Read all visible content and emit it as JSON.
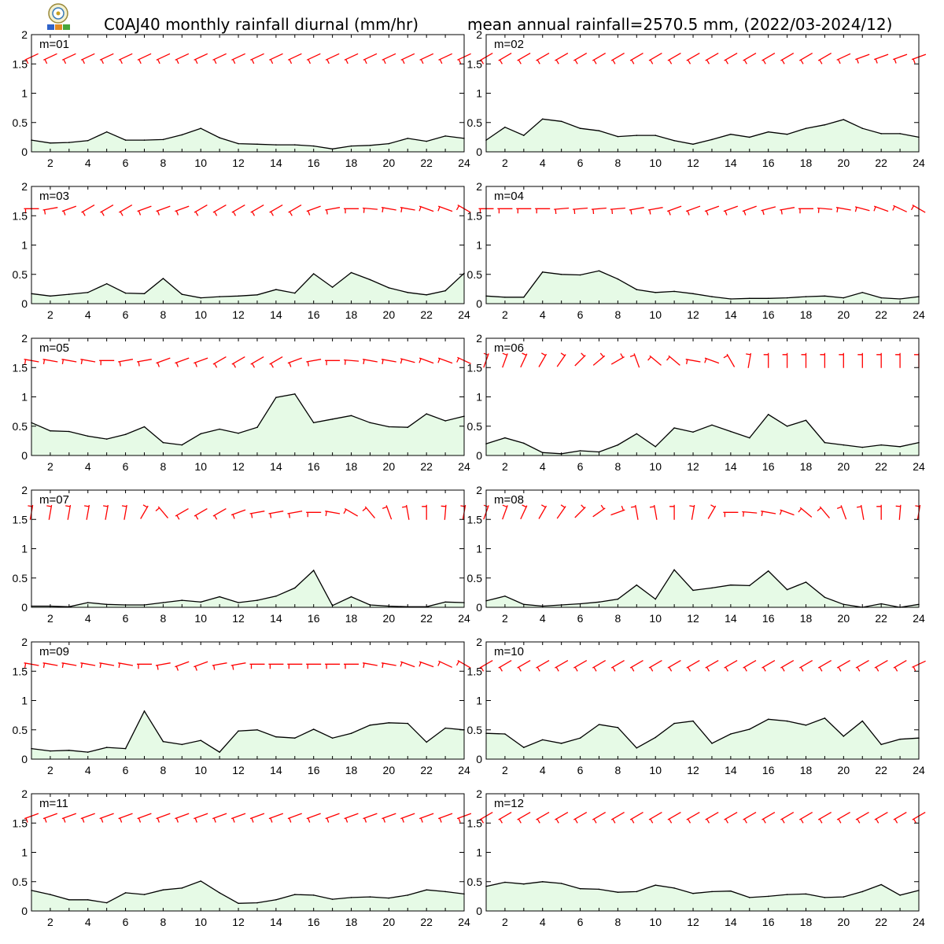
{
  "title_left": "C0AJ40 monthly rainfall diurnal (mm/hr)",
  "title_right": "mean annual rainfall=2570.5 mm, (2022/03-2024/12)",
  "colors": {
    "fill": "#e6fae6",
    "line": "#000000",
    "wind": "#ff0000"
  },
  "chart_data": {
    "type": "area",
    "x": [
      1,
      2,
      3,
      4,
      5,
      6,
      7,
      8,
      9,
      10,
      11,
      12,
      13,
      14,
      15,
      16,
      17,
      18,
      19,
      20,
      21,
      22,
      23,
      24
    ],
    "xticks": [
      2,
      4,
      6,
      8,
      10,
      12,
      14,
      16,
      18,
      20,
      22,
      24
    ],
    "ylim": [
      0,
      2
    ],
    "yticks": [
      "0",
      "0.5",
      "1",
      "1.5",
      "2"
    ],
    "panels": [
      {
        "label": "m=01",
        "values": [
          0.2,
          0.15,
          0.16,
          0.19,
          0.34,
          0.2,
          0.2,
          0.21,
          0.29,
          0.4,
          0.24,
          0.14,
          0.13,
          0.12,
          0.12,
          0.1,
          0.05,
          0.1,
          0.11,
          0.14,
          0.23,
          0.18,
          0.27,
          0.23
        ]
      },
      {
        "label": "m=02",
        "values": [
          0.2,
          0.42,
          0.28,
          0.56,
          0.52,
          0.4,
          0.36,
          0.26,
          0.28,
          0.28,
          0.19,
          0.13,
          0.21,
          0.3,
          0.25,
          0.34,
          0.3,
          0.4,
          0.46,
          0.55,
          0.4,
          0.31,
          0.31,
          0.25
        ]
      },
      {
        "label": "m=03",
        "values": [
          0.17,
          0.13,
          0.16,
          0.19,
          0.34,
          0.18,
          0.17,
          0.43,
          0.16,
          0.1,
          0.12,
          0.13,
          0.15,
          0.24,
          0.18,
          0.51,
          0.28,
          0.53,
          0.41,
          0.27,
          0.19,
          0.15,
          0.22,
          0.52
        ]
      },
      {
        "label": "m=04",
        "values": [
          0.13,
          0.11,
          0.11,
          0.54,
          0.5,
          0.49,
          0.56,
          0.42,
          0.24,
          0.19,
          0.21,
          0.17,
          0.12,
          0.08,
          0.09,
          0.09,
          0.1,
          0.12,
          0.13,
          0.1,
          0.19,
          0.1,
          0.08,
          0.12
        ]
      },
      {
        "label": "m=05",
        "values": [
          0.56,
          0.42,
          0.41,
          0.33,
          0.28,
          0.36,
          0.49,
          0.22,
          0.18,
          0.37,
          0.45,
          0.38,
          0.48,
          0.99,
          1.05,
          0.56,
          0.62,
          0.68,
          0.56,
          0.49,
          0.48,
          0.71,
          0.59,
          0.67
        ]
      },
      {
        "label": "m=06",
        "values": [
          0.2,
          0.3,
          0.21,
          0.05,
          0.03,
          0.08,
          0.06,
          0.18,
          0.37,
          0.15,
          0.47,
          0.4,
          0.52,
          0.41,
          0.3,
          0.7,
          0.5,
          0.6,
          0.22,
          0.18,
          0.14,
          0.18,
          0.15,
          0.22
        ]
      },
      {
        "label": "m=07",
        "values": [
          0.02,
          0.02,
          0.01,
          0.08,
          0.05,
          0.04,
          0.04,
          0.08,
          0.12,
          0.09,
          0.18,
          0.08,
          0.12,
          0.19,
          0.33,
          0.63,
          0.03,
          0.18,
          0.04,
          0.02,
          0.01,
          0.01,
          0.09,
          0.08
        ]
      },
      {
        "label": "m=08",
        "values": [
          0.11,
          0.19,
          0.05,
          0.02,
          0.04,
          0.06,
          0.09,
          0.14,
          0.38,
          0.14,
          0.64,
          0.29,
          0.33,
          0.38,
          0.37,
          0.62,
          0.3,
          0.43,
          0.17,
          0.05,
          0.0,
          0.06,
          0.0,
          0.05
        ]
      },
      {
        "label": "m=09",
        "values": [
          0.18,
          0.14,
          0.15,
          0.12,
          0.2,
          0.18,
          0.82,
          0.3,
          0.25,
          0.32,
          0.12,
          0.48,
          0.5,
          0.38,
          0.36,
          0.51,
          0.36,
          0.44,
          0.58,
          0.62,
          0.61,
          0.29,
          0.53,
          0.5
        ]
      },
      {
        "label": "m=10",
        "values": [
          0.44,
          0.43,
          0.2,
          0.33,
          0.27,
          0.36,
          0.59,
          0.54,
          0.19,
          0.37,
          0.61,
          0.65,
          0.27,
          0.43,
          0.51,
          0.68,
          0.65,
          0.58,
          0.7,
          0.39,
          0.65,
          0.25,
          0.34,
          0.36
        ]
      },
      {
        "label": "m=11",
        "values": [
          0.35,
          0.28,
          0.19,
          0.19,
          0.14,
          0.31,
          0.28,
          0.36,
          0.39,
          0.51,
          0.31,
          0.13,
          0.14,
          0.19,
          0.28,
          0.27,
          0.2,
          0.23,
          0.24,
          0.22,
          0.27,
          0.36,
          0.33,
          0.29
        ]
      },
      {
        "label": "m=12",
        "values": [
          0.42,
          0.49,
          0.46,
          0.5,
          0.47,
          0.38,
          0.37,
          0.32,
          0.33,
          0.44,
          0.39,
          0.3,
          0.33,
          0.34,
          0.23,
          0.25,
          0.28,
          0.29,
          0.23,
          0.24,
          0.33,
          0.45,
          0.27,
          0.35
        ]
      }
    ],
    "wind_dir_deg": [
      [
        65,
        65,
        65,
        65,
        65,
        65,
        65,
        65,
        65,
        65,
        65,
        65,
        65,
        65,
        65,
        65,
        65,
        65,
        65,
        65,
        65,
        65,
        65,
        65
      ],
      [
        60,
        60,
        60,
        60,
        60,
        60,
        60,
        60,
        60,
        60,
        60,
        60,
        60,
        60,
        60,
        60,
        60,
        60,
        60,
        65,
        70,
        70,
        70,
        70
      ],
      [
        90,
        80,
        70,
        60,
        60,
        60,
        70,
        70,
        70,
        60,
        60,
        60,
        60,
        60,
        60,
        70,
        80,
        90,
        95,
        100,
        100,
        110,
        110,
        120
      ],
      [
        90,
        90,
        90,
        90,
        85,
        85,
        85,
        85,
        80,
        80,
        70,
        70,
        70,
        70,
        70,
        75,
        80,
        90,
        95,
        100,
        105,
        110,
        115,
        120
      ],
      [
        100,
        100,
        100,
        100,
        90,
        80,
        80,
        70,
        70,
        70,
        60,
        60,
        60,
        60,
        70,
        80,
        90,
        95,
        100,
        100,
        105,
        110,
        110,
        115
      ],
      [
        200,
        200,
        205,
        210,
        215,
        225,
        230,
        240,
        160,
        130,
        130,
        100,
        110,
        150,
        190,
        180,
        180,
        180,
        180,
        180,
        180,
        180,
        180,
        180
      ],
      [
        190,
        190,
        190,
        190,
        190,
        190,
        210,
        140,
        60,
        60,
        60,
        70,
        80,
        80,
        80,
        90,
        100,
        120,
        140,
        160,
        170,
        180,
        185,
        190
      ],
      [
        200,
        200,
        205,
        210,
        215,
        225,
        235,
        250,
        170,
        170,
        180,
        190,
        210,
        90,
        95,
        100,
        110,
        130,
        140,
        160,
        170,
        180,
        185,
        190
      ],
      [
        100,
        100,
        100,
        100,
        100,
        100,
        90,
        80,
        70,
        70,
        80,
        80,
        90,
        90,
        90,
        90,
        90,
        90,
        100,
        100,
        110,
        110,
        115,
        120
      ],
      [
        60,
        60,
        60,
        60,
        60,
        60,
        60,
        60,
        60,
        60,
        60,
        60,
        60,
        60,
        60,
        60,
        60,
        60,
        60,
        60,
        60,
        60,
        60,
        65
      ],
      [
        70,
        70,
        70,
        70,
        70,
        70,
        70,
        70,
        70,
        70,
        70,
        70,
        70,
        70,
        70,
        70,
        70,
        70,
        70,
        70,
        70,
        70,
        70,
        70
      ],
      [
        60,
        60,
        60,
        60,
        60,
        60,
        60,
        60,
        60,
        60,
        60,
        60,
        60,
        60,
        60,
        60,
        60,
        60,
        60,
        60,
        60,
        60,
        60,
        60
      ]
    ]
  }
}
